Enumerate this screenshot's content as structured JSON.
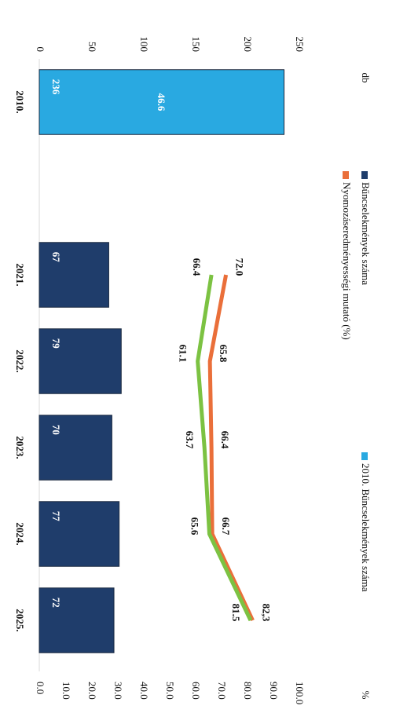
{
  "chart_data": {
    "type": "combo",
    "categories": [
      "2010.",
      null,
      "2021.",
      "2022.",
      "2023.",
      "2024.",
      "2025."
    ],
    "ylabel": "db",
    "y2label": "%",
    "ylim": [
      0,
      250
    ],
    "yticks": [
      0,
      50,
      100,
      150,
      200,
      250
    ],
    "y2lim": [
      0,
      100
    ],
    "y2ticks": [
      {
        "value": 0,
        "label": "0.0"
      },
      {
        "value": 10,
        "label": "10.0"
      },
      {
        "value": 20,
        "label": "20.0"
      },
      {
        "value": 30,
        "label": "30.0"
      },
      {
        "value": 40,
        "label": "40.0"
      },
      {
        "value": 50,
        "label": "50.0"
      },
      {
        "value": 60,
        "label": "60.0"
      },
      {
        "value": 70,
        "label": "70.0"
      },
      {
        "value": 80,
        "label": "80.0"
      },
      {
        "value": 90,
        "label": "90.0"
      },
      {
        "value": 100,
        "label": "100.0"
      }
    ],
    "legend": "top",
    "series": [
      {
        "name": "Bűncselekmények száma",
        "color": "#1f3d6b",
        "kind": "bar",
        "values": [
          null,
          null,
          67,
          79,
          70,
          77,
          72
        ]
      },
      {
        "name": "2010. Bűncselekmények száma",
        "color": "#29a9e1",
        "kind": "bar",
        "values": [
          236,
          null,
          null,
          null,
          null,
          null,
          null
        ]
      },
      {
        "name": "Nyomozáseredményességi mutató (%)",
        "color": "#ea6f3a",
        "kind": "line",
        "axis": "y2",
        "values": [
          null,
          null,
          72.0,
          65.8,
          66.4,
          66.7,
          82.3
        ],
        "value_labels": [
          null,
          null,
          "72.0",
          "65.8",
          "66.4",
          "66.7",
          "82,3"
        ]
      },
      {
        "color": "#7cc242",
        "kind": "line",
        "axis": "y2",
        "values": [
          null,
          null,
          66.4,
          61.1,
          63.7,
          65.6,
          81.5
        ]
      },
      {
        "color": "#ffffff",
        "kind": "label",
        "axis": "y2",
        "values": [
          46.6,
          null,
          null,
          null,
          null,
          null,
          null
        ]
      }
    ]
  }
}
